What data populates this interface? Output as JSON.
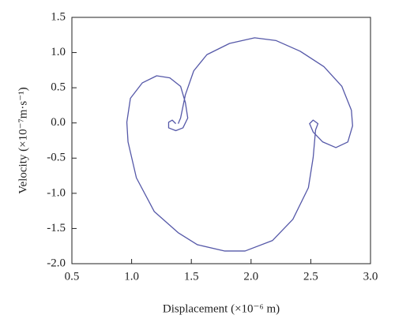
{
  "chart_data": {
    "type": "line",
    "x_label": "Displacement (×10⁻⁶ m)",
    "y_label": "Velocity (×10⁻⁷m·s⁻¹)",
    "xlim": [
      0.5,
      3.0
    ],
    "ylim": [
      -2.0,
      1.5
    ],
    "xticks": [
      0.5,
      {
        "value": 1.0,
        "label": "1.0"
      },
      1.5,
      {
        "value": 2.0,
        "label": "2.0"
      },
      2.5,
      {
        "value": 3.0,
        "label": "3.0"
      }
    ],
    "yticks": [
      1.5,
      {
        "value": 1.0,
        "label": "1.0"
      },
      0.5,
      {
        "value": 0.0,
        "label": "0.0"
      },
      -0.5,
      {
        "value": -1.0,
        "label": "-1.0"
      },
      -1.5,
      {
        "value": -2.0,
        "label": "-2.0"
      }
    ],
    "series": [
      {
        "color": "#5558a8",
        "x": [
          1.37,
          1.34,
          1.31,
          1.31,
          1.37,
          1.43,
          1.47,
          1.45,
          1.41,
          1.32,
          1.21,
          1.09,
          0.99,
          0.96,
          0.97,
          1.04,
          1.19,
          1.39,
          1.55,
          1.78,
          1.95,
          2.18,
          2.35,
          2.48,
          2.52,
          2.54,
          2.56,
          2.52,
          2.49,
          2.52,
          2.6,
          2.71,
          2.81,
          2.85,
          2.84,
          2.76,
          2.61,
          2.41,
          2.21,
          2.03,
          1.82,
          1.63,
          1.52,
          1.45,
          1.41,
          1.39
        ],
        "values": [
          -0.01,
          0.04,
          0.01,
          -0.07,
          -0.11,
          -0.07,
          0.07,
          0.29,
          0.52,
          0.64,
          0.67,
          0.57,
          0.35,
          0.01,
          -0.27,
          -0.78,
          -1.26,
          -1.56,
          -1.73,
          -1.82,
          -1.82,
          -1.67,
          -1.37,
          -0.92,
          -0.49,
          -0.1,
          -0.01,
          0.04,
          -0.01,
          -0.13,
          -0.27,
          -0.35,
          -0.27,
          -0.04,
          0.18,
          0.52,
          0.8,
          1.02,
          1.17,
          1.21,
          1.13,
          0.97,
          0.74,
          0.4,
          0.07,
          -0.01
        ]
      }
    ]
  }
}
